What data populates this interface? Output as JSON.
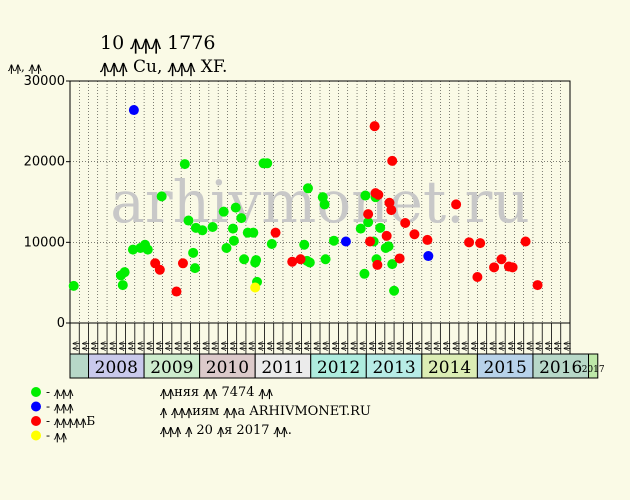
{
  "chart_data": {
    "type": "scatter",
    "title": "10 ꙟꙟꙟ 1776",
    "subtitle": "ꙟꙟꙟ Cu, ꙟꙟꙟ XF.",
    "ylabel": "ꙟꙟ, ꙟꙟ",
    "ylim": [
      0,
      30000
    ],
    "y_ticks": [
      "0",
      "10000",
      "20000",
      "30000"
    ],
    "grid": true,
    "watermark": "arhivmonet.ru",
    "x_ticks": [
      "ꙟꙟ",
      "ꙟꙟ",
      "ꙟꙟ",
      "ꙟꙟ",
      "ꙟꙟ",
      "ꙟꙟ",
      "ꙟꙟ",
      "ꙟꙟ",
      "ꙟꙟ",
      "ꙟꙟ",
      "ꙟꙟ",
      "ꙟꙟ",
      "ꙟꙟ",
      "ꙟꙟ",
      "ꙟꙟ",
      "ꙟꙟ",
      "ꙟꙟ",
      "ꙟꙟ",
      "ꙟꙟ",
      "ꙟꙟ",
      "ꙟꙟ",
      "ꙟꙟ",
      "ꙟꙟ",
      "ꙟꙟ",
      "ꙟꙟ",
      "ꙟꙟ",
      "ꙟꙟ",
      "ꙟꙟ",
      "ꙟꙟ",
      "ꙟꙟ",
      "ꙟꙟ",
      "ꙟꙟ",
      "ꙟꙟ",
      "ꙟꙟ",
      "ꙟꙟ",
      "ꙟꙟ",
      "ꙟꙟ",
      "ꙟꙟ",
      "ꙟꙟ",
      "ꙟꙟ",
      "ꙟꙟ",
      "ꙟꙟ",
      "ꙟꙟ",
      "ꙟꙟ",
      "ꙟꙟ",
      "ꙟꙟ",
      "ꙟꙟ",
      "ꙟꙟ",
      "ꙟꙟ",
      "ꙟꙟ",
      "ꙟꙟ",
      "ꙟꙟ",
      "ꙟꙟ",
      "ꙟꙟ",
      "ꙟꙟ",
      "ꙟꙟ",
      "ꙟꙟ",
      "ꙟꙟ",
      "ꙟꙟ",
      "ꙟꙟ",
      "ꙟꙟ",
      "ꙟꙟ",
      "ꙟꙟ",
      "ꙟꙟ",
      "ꙟꙟ",
      "ꙟꙟ",
      "ꙟꙟ",
      "ꙟꙟ",
      "ꙟꙟ",
      "ꙟꙟ",
      "ꙟꙟ",
      "ꙟꙟ",
      "ꙟꙟ",
      "ꙟꙟ",
      "ꙟꙟ",
      "ꙟꙟ",
      "ꙟꙟ",
      "ꙟꙟ",
      "ꙟꙟ",
      "ꙟꙟ",
      "ꙟꙟ",
      "ꙟꙟ",
      "ꙟꙟ",
      "ꙟꙟ",
      "ꙟꙟ",
      "ꙟꙟ",
      "ꙟꙟ",
      "ꙟꙟ",
      "ꙟꙟ",
      "ꙟꙟ",
      "ꙟꙟ",
      "ꙟꙟ",
      "ꙟꙟ",
      "ꙟꙟ",
      "ꙟꙟ",
      "ꙟꙟ",
      "ꙟꙟ",
      "ꙟꙟ",
      "ꙟꙟ",
      "ꙟꙟ",
      "ꙟꙟ",
      "ꙟꙟ",
      "ꙟꙟ",
      "ꙟꙟ",
      "ꙟꙟ",
      "ꙟꙟ",
      "ꙟꙟ",
      "ꙟꙟ",
      "ꙟꙟ",
      "ꙟꙟ",
      "ꙟꙟ",
      "ꙟꙟ",
      "ꙟꙟ",
      "ꙟꙟ",
      "ꙟꙟ",
      "ꙟꙟ",
      "ꙟꙟ",
      "ꙟꙟ",
      "ꙟꙟ",
      "ꙟꙟ",
      "ꙟꙟ",
      "ꙟꙟ",
      "ꙟꙟ",
      "ꙟꙟ"
    ],
    "x_tick_count": 54,
    "year_bands": [
      {
        "label": "",
        "months": 2,
        "color": "#b7d8c8"
      },
      {
        "label": "2008",
        "months": 6,
        "color": "#c9c9ec"
      },
      {
        "label": "2009",
        "months": 6,
        "color": "#cdeccd"
      },
      {
        "label": "2010",
        "months": 6,
        "color": "#dccaca"
      },
      {
        "label": "2011",
        "months": 6,
        "color": "#ebebeb"
      },
      {
        "label": "2012",
        "months": 6,
        "color": "#aeecde"
      },
      {
        "label": "2013",
        "months": 6,
        "color": "#b7ece6"
      },
      {
        "label": "2014",
        "months": 6,
        "color": "#dcedb4"
      },
      {
        "label": "2015",
        "months": 6,
        "color": "#b7d2ea"
      },
      {
        "label": "2016",
        "months": 6,
        "color": "#b7d8c8"
      },
      {
        "label": "2017",
        "months": 1,
        "color": "#bde8a8",
        "small": true
      }
    ],
    "series": [
      {
        "name": "ꙟꙟꙟ",
        "color": "#00ee00",
        "points": [
          [
            0.4,
            4600
          ],
          [
            5.5,
            5900
          ],
          [
            5.9,
            6300
          ],
          [
            5.7,
            4700
          ],
          [
            6.8,
            9100
          ],
          [
            7.6,
            9300
          ],
          [
            8.1,
            9700
          ],
          [
            8.4,
            9100
          ],
          [
            9.9,
            15700
          ],
          [
            12.4,
            19700
          ],
          [
            12.8,
            12700
          ],
          [
            13.3,
            8700
          ],
          [
            13.6,
            11800
          ],
          [
            13.5,
            6800
          ],
          [
            14.3,
            11500
          ],
          [
            15.4,
            11900
          ],
          [
            16.6,
            13800
          ],
          [
            16.9,
            9300
          ],
          [
            17.7,
            10200
          ],
          [
            17.6,
            11700
          ],
          [
            17.9,
            14300
          ],
          [
            18.5,
            13000
          ],
          [
            18.8,
            7900
          ],
          [
            19.2,
            11200
          ],
          [
            19.8,
            11200
          ],
          [
            20.1,
            7800
          ],
          [
            20.0,
            7500
          ],
          [
            20.2,
            5100
          ],
          [
            20.9,
            19800
          ],
          [
            21.3,
            19800
          ],
          [
            21.8,
            9800
          ],
          [
            25.3,
            9700
          ],
          [
            25.6,
            7700
          ],
          [
            25.9,
            7500
          ],
          [
            25.7,
            16700
          ],
          [
            27.3,
            15600
          ],
          [
            27.5,
            14700
          ],
          [
            27.6,
            7900
          ],
          [
            28.5,
            10200
          ],
          [
            31.4,
            11700
          ],
          [
            31.8,
            6100
          ],
          [
            31.9,
            15800
          ],
          [
            32.2,
            12500
          ],
          [
            32.8,
            10100
          ],
          [
            33.0,
            15600
          ],
          [
            33.1,
            7900
          ],
          [
            33.5,
            11800
          ],
          [
            34.1,
            9300
          ],
          [
            34.4,
            9500
          ],
          [
            34.8,
            7300
          ],
          [
            35.0,
            4000
          ]
        ]
      },
      {
        "name": "ꙟꙟꙟ",
        "color": "#0000ff",
        "points": [
          [
            6.9,
            26400
          ],
          [
            29.8,
            10100
          ],
          [
            38.7,
            8300
          ]
        ]
      },
      {
        "name": "ꙟꙟꙟꙟꙟБ",
        "color": "#ff0000",
        "points": [
          [
            9.2,
            7400
          ],
          [
            9.7,
            6600
          ],
          [
            11.5,
            3900
          ],
          [
            12.2,
            7400
          ],
          [
            22.2,
            11200
          ],
          [
            24.0,
            7600
          ],
          [
            24.9,
            7900
          ],
          [
            32.2,
            13500
          ],
          [
            32.4,
            10100
          ],
          [
            32.9,
            24400
          ],
          [
            33.0,
            16100
          ],
          [
            33.3,
            15900
          ],
          [
            33.2,
            7200
          ],
          [
            34.2,
            10800
          ],
          [
            34.5,
            14900
          ],
          [
            34.7,
            14000
          ],
          [
            34.8,
            20100
          ],
          [
            35.6,
            8000
          ],
          [
            36.2,
            12400
          ],
          [
            37.2,
            11000
          ],
          [
            38.6,
            10300
          ],
          [
            41.7,
            14700
          ],
          [
            43.1,
            10000
          ],
          [
            44.0,
            5700
          ],
          [
            44.3,
            9900
          ],
          [
            45.8,
            6900
          ],
          [
            46.6,
            7900
          ],
          [
            47.4,
            7000
          ],
          [
            47.8,
            6900
          ],
          [
            49.2,
            10100
          ],
          [
            50.5,
            4700
          ]
        ]
      },
      {
        "name": "ꙟꙟ",
        "color": "#ffff00",
        "points": [
          [
            20.0,
            4400
          ]
        ]
      }
    ],
    "legend": [
      {
        "color": "#00ee00",
        "label": "- ꙟꙟꙟ"
      },
      {
        "color": "#0000ff",
        "label": "- ꙟꙟꙟ"
      },
      {
        "color": "#ff0000",
        "label": "- ꙟꙟꙟꙟꙟБ"
      },
      {
        "color": "#ffff00",
        "label": "- ꙟꙟ"
      }
    ],
    "notes": [
      "ꙟꙟняя ꙟꙟ 7474 ꙟꙟ",
      "ꙟ ꙟꙟꙟиям ꙟꙟа ARHIVMONET.RU",
      "ꙟꙟꙟ ꙟ 20 ꙟя 2017 ꙟꙟ."
    ]
  }
}
